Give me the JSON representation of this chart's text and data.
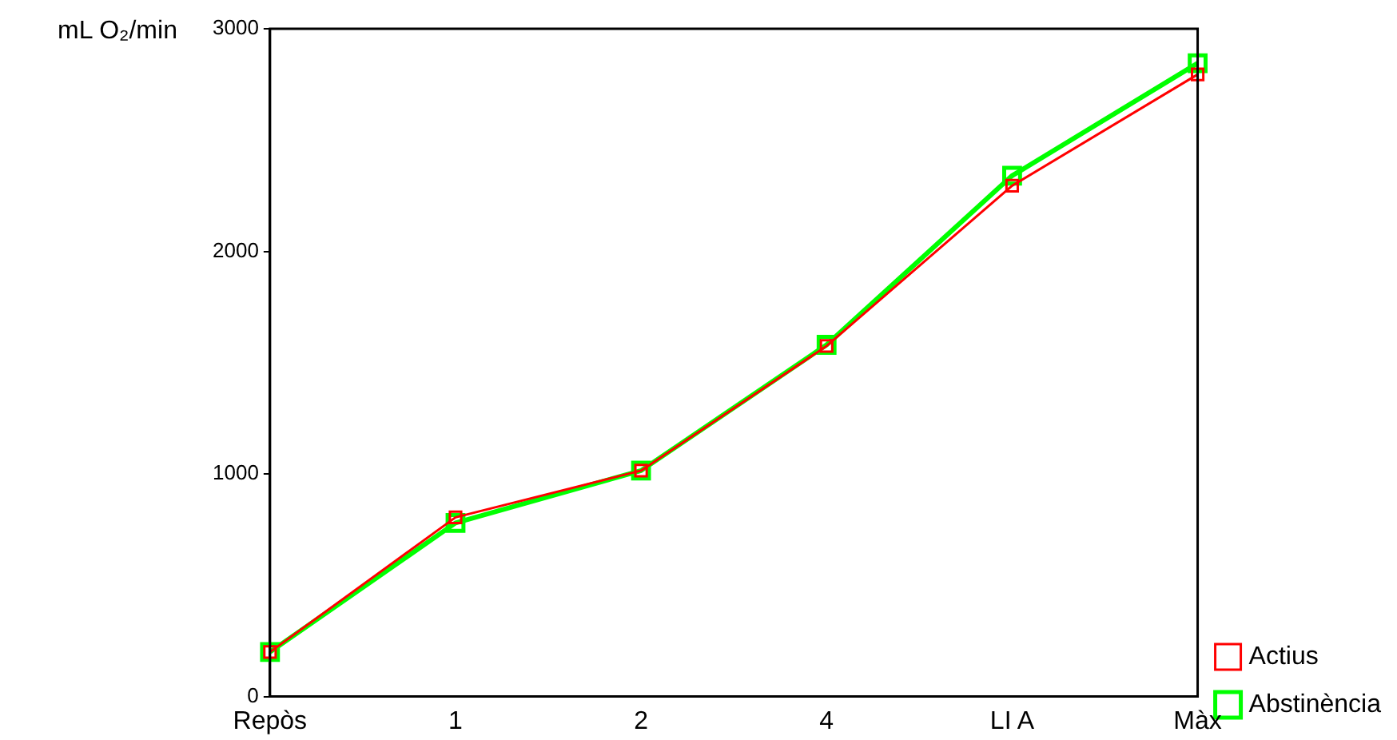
{
  "chart_data": {
    "type": "line",
    "ylabel": "mL O₂/min",
    "categories": [
      "Repòs",
      "1",
      "2",
      "4",
      "LI A",
      "Màx"
    ],
    "series": [
      {
        "name": "Actius",
        "color": "#ff0000",
        "values": [
          200,
          805,
          1015,
          1575,
          2295,
          2795
        ]
      },
      {
        "name": "Abstinència",
        "color": "#00ff00",
        "values": [
          200,
          780,
          1015,
          1580,
          2340,
          2845
        ]
      }
    ],
    "ylim": [
      0,
      3000
    ],
    "yticks": [
      0,
      1000,
      2000,
      3000
    ],
    "grid": false,
    "legend": "bottom right",
    "marker": "square",
    "line_style": "solid"
  }
}
